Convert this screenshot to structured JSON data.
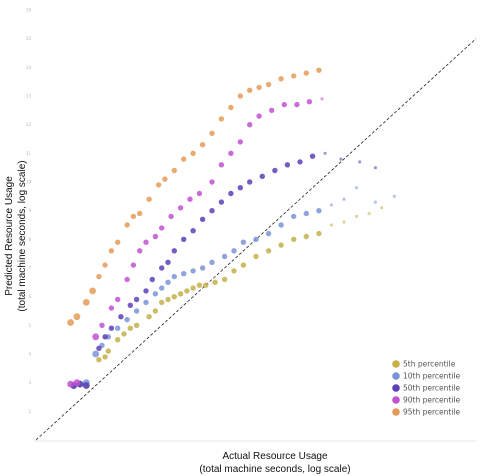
{
  "chart_data": {
    "type": "scatter",
    "title": "",
    "xlabel": "Actual Resource Usage",
    "xlabel_sub": "(total machine seconds, log scale)",
    "ylabel": "Predicted Resource Usage",
    "ylabel_sub": "(total machine seconds, log scale)",
    "xlim": [
      1,
      15
    ],
    "ylim": [
      1,
      16
    ],
    "y_ticks": [
      2,
      3,
      4,
      5,
      6,
      7,
      8,
      9,
      10,
      11,
      12,
      13,
      14,
      15,
      16
    ],
    "grid": false,
    "legend_position": "bottom-right",
    "reference_line": "y = x (dashed)",
    "series": [
      {
        "name": "5th percentile",
        "color": "#c2b04a",
        "points": [
          [
            2.2,
            2.9
          ],
          [
            2.4,
            2.95
          ],
          [
            2.6,
            2.9
          ],
          [
            3.0,
            3.8
          ],
          [
            3.2,
            3.9
          ],
          [
            3.3,
            4.1
          ],
          [
            3.6,
            4.5
          ],
          [
            3.8,
            4.7
          ],
          [
            4.0,
            4.9
          ],
          [
            4.2,
            5.0
          ],
          [
            4.6,
            5.3
          ],
          [
            4.8,
            5.5
          ],
          [
            5.0,
            5.8
          ],
          [
            5.2,
            5.9
          ],
          [
            5.4,
            6.0
          ],
          [
            5.6,
            6.1
          ],
          [
            5.8,
            6.2
          ],
          [
            6.0,
            6.3
          ],
          [
            6.2,
            6.4
          ],
          [
            6.4,
            6.4
          ],
          [
            6.7,
            6.5
          ],
          [
            7.0,
            6.6
          ],
          [
            7.3,
            6.9
          ],
          [
            7.6,
            7.1
          ],
          [
            8.0,
            7.4
          ],
          [
            8.4,
            7.6
          ],
          [
            8.8,
            7.8
          ],
          [
            9.2,
            8.0
          ],
          [
            9.6,
            8.1
          ],
          [
            10.0,
            8.2
          ],
          [
            10.4,
            8.5
          ],
          [
            10.8,
            8.6
          ],
          [
            11.2,
            8.8
          ],
          [
            11.6,
            8.9
          ],
          [
            12.0,
            9.1
          ]
        ]
      },
      {
        "name": "10th percentile",
        "color": "#7b93d6",
        "points": [
          [
            2.2,
            2.9
          ],
          [
            2.4,
            2.95
          ],
          [
            2.6,
            3.0
          ],
          [
            2.9,
            4.0
          ],
          [
            3.1,
            4.3
          ],
          [
            3.3,
            4.6
          ],
          [
            3.6,
            4.9
          ],
          [
            3.9,
            5.2
          ],
          [
            4.2,
            5.5
          ],
          [
            4.5,
            5.8
          ],
          [
            4.8,
            6.1
          ],
          [
            5.0,
            6.3
          ],
          [
            5.2,
            6.5
          ],
          [
            5.4,
            6.7
          ],
          [
            5.7,
            6.8
          ],
          [
            6.0,
            6.9
          ],
          [
            6.3,
            7.0
          ],
          [
            6.6,
            7.2
          ],
          [
            7.0,
            7.4
          ],
          [
            7.3,
            7.6
          ],
          [
            7.6,
            7.9
          ],
          [
            8.0,
            8.0
          ],
          [
            8.4,
            8.2
          ],
          [
            8.8,
            8.5
          ],
          [
            9.2,
            8.8
          ],
          [
            9.6,
            8.9
          ],
          [
            10.0,
            9.0
          ],
          [
            10.4,
            9.2
          ],
          [
            10.8,
            9.4
          ],
          [
            11.2,
            9.8
          ],
          [
            11.8,
            9.3
          ],
          [
            12.4,
            9.5
          ]
        ]
      },
      {
        "name": "50th percentile",
        "color": "#5c3fb8",
        "points": [
          [
            2.2,
            2.9
          ],
          [
            2.4,
            2.95
          ],
          [
            2.6,
            2.9
          ],
          [
            3.0,
            4.2
          ],
          [
            3.2,
            4.6
          ],
          [
            3.4,
            4.9
          ],
          [
            3.7,
            5.3
          ],
          [
            4.0,
            5.7
          ],
          [
            4.2,
            5.9
          ],
          [
            4.5,
            6.2
          ],
          [
            4.7,
            6.6
          ],
          [
            5.0,
            7.0
          ],
          [
            5.2,
            7.2
          ],
          [
            5.4,
            7.6
          ],
          [
            5.7,
            8.0
          ],
          [
            6.0,
            8.3
          ],
          [
            6.3,
            8.7
          ],
          [
            6.6,
            9.0
          ],
          [
            6.9,
            9.3
          ],
          [
            7.2,
            9.6
          ],
          [
            7.5,
            9.8
          ],
          [
            7.8,
            10.0
          ],
          [
            8.2,
            10.2
          ],
          [
            8.6,
            10.4
          ],
          [
            9.0,
            10.6
          ],
          [
            9.4,
            10.7
          ],
          [
            9.8,
            10.9
          ],
          [
            10.2,
            11.0
          ],
          [
            10.7,
            10.8
          ],
          [
            11.3,
            10.7
          ],
          [
            11.8,
            10.5
          ]
        ]
      },
      {
        "name": "90th percentile",
        "color": "#c152d0",
        "points": [
          [
            2.1,
            2.95
          ],
          [
            2.3,
            3.0
          ],
          [
            2.9,
            4.6
          ],
          [
            3.1,
            5.0
          ],
          [
            3.4,
            5.6
          ],
          [
            3.6,
            5.9
          ],
          [
            3.9,
            6.6
          ],
          [
            4.1,
            7.1
          ],
          [
            4.3,
            7.6
          ],
          [
            4.5,
            7.9
          ],
          [
            4.8,
            8.1
          ],
          [
            5.0,
            8.4
          ],
          [
            5.3,
            8.8
          ],
          [
            5.6,
            9.1
          ],
          [
            5.9,
            9.4
          ],
          [
            6.2,
            9.6
          ],
          [
            6.6,
            10.0
          ],
          [
            6.9,
            10.6
          ],
          [
            7.2,
            11.0
          ],
          [
            7.5,
            11.4
          ],
          [
            7.8,
            12.0
          ],
          [
            8.1,
            12.3
          ],
          [
            8.5,
            12.5
          ],
          [
            8.9,
            12.7
          ],
          [
            9.3,
            12.7
          ],
          [
            9.7,
            12.8
          ],
          [
            10.1,
            12.9
          ]
        ]
      },
      {
        "name": "95th percentile",
        "color": "#e59b56",
        "points": [
          [
            2.1,
            5.1
          ],
          [
            2.3,
            5.3
          ],
          [
            2.6,
            5.8
          ],
          [
            2.8,
            6.2
          ],
          [
            3.0,
            6.7
          ],
          [
            3.2,
            7.1
          ],
          [
            3.4,
            7.6
          ],
          [
            3.6,
            7.9
          ],
          [
            3.9,
            8.5
          ],
          [
            4.1,
            8.8
          ],
          [
            4.3,
            8.9
          ],
          [
            4.6,
            9.4
          ],
          [
            4.9,
            9.9
          ],
          [
            5.1,
            10.1
          ],
          [
            5.4,
            10.4
          ],
          [
            5.7,
            10.8
          ],
          [
            6.0,
            11.0
          ],
          [
            6.3,
            11.3
          ],
          [
            6.6,
            11.7
          ],
          [
            6.9,
            12.2
          ],
          [
            7.2,
            12.6
          ],
          [
            7.5,
            13.0
          ],
          [
            7.8,
            13.2
          ],
          [
            8.1,
            13.3
          ],
          [
            8.4,
            13.4
          ],
          [
            8.8,
            13.6
          ],
          [
            9.2,
            13.7
          ],
          [
            9.6,
            13.8
          ],
          [
            10.0,
            13.9
          ]
        ]
      }
    ]
  }
}
